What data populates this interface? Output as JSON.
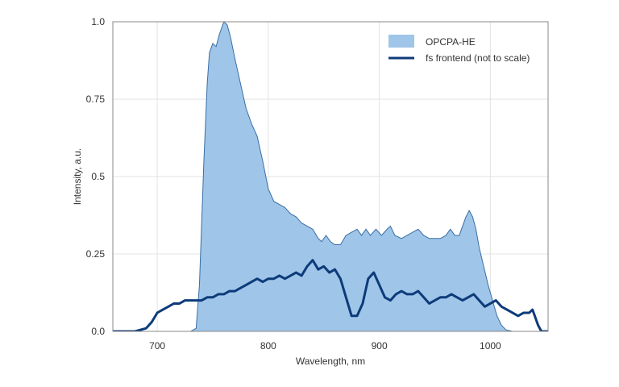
{
  "chart_data": {
    "type": "area",
    "title": "",
    "xlabel": "Wavelength, nm",
    "ylabel": "Intensity, a.u.",
    "xlim": [
      660,
      1052
    ],
    "ylim": [
      0,
      1.0
    ],
    "x_ticks": [
      700,
      800,
      900,
      1000
    ],
    "x_tick_labels": [
      "700",
      "800",
      "900",
      "1000"
    ],
    "y_ticks": [
      0,
      0.25,
      0.5,
      0.75,
      1.0
    ],
    "y_tick_labels": [
      "0.0",
      "0.25",
      "0.5",
      "0.75",
      "1.0"
    ],
    "grid": true,
    "legend": "top-right",
    "series": [
      {
        "name": "OPCPA-HE",
        "style": "filled-area",
        "fill_color": "#9fc5e8",
        "line_color": "#3a6ea5",
        "points": [
          [
            730,
            0.0
          ],
          [
            735,
            0.01
          ],
          [
            738,
            0.15
          ],
          [
            742,
            0.55
          ],
          [
            745,
            0.8
          ],
          [
            747,
            0.9
          ],
          [
            750,
            0.93
          ],
          [
            753,
            0.92
          ],
          [
            756,
            0.96
          ],
          [
            760,
            1.0
          ],
          [
            763,
            0.99
          ],
          [
            766,
            0.95
          ],
          [
            770,
            0.88
          ],
          [
            775,
            0.8
          ],
          [
            780,
            0.72
          ],
          [
            785,
            0.67
          ],
          [
            790,
            0.63
          ],
          [
            795,
            0.55
          ],
          [
            800,
            0.46
          ],
          [
            805,
            0.42
          ],
          [
            810,
            0.41
          ],
          [
            815,
            0.4
          ],
          [
            820,
            0.38
          ],
          [
            825,
            0.37
          ],
          [
            830,
            0.35
          ],
          [
            835,
            0.34
          ],
          [
            840,
            0.33
          ],
          [
            845,
            0.3
          ],
          [
            848,
            0.29
          ],
          [
            852,
            0.31
          ],
          [
            856,
            0.29
          ],
          [
            860,
            0.28
          ],
          [
            865,
            0.28
          ],
          [
            870,
            0.31
          ],
          [
            875,
            0.32
          ],
          [
            880,
            0.33
          ],
          [
            884,
            0.31
          ],
          [
            888,
            0.33
          ],
          [
            892,
            0.31
          ],
          [
            897,
            0.33
          ],
          [
            902,
            0.31
          ],
          [
            907,
            0.33
          ],
          [
            910,
            0.34
          ],
          [
            914,
            0.31
          ],
          [
            920,
            0.3
          ],
          [
            925,
            0.31
          ],
          [
            930,
            0.32
          ],
          [
            935,
            0.33
          ],
          [
            940,
            0.31
          ],
          [
            945,
            0.3
          ],
          [
            950,
            0.3
          ],
          [
            955,
            0.3
          ],
          [
            960,
            0.31
          ],
          [
            964,
            0.33
          ],
          [
            968,
            0.31
          ],
          [
            972,
            0.31
          ],
          [
            975,
            0.34
          ],
          [
            978,
            0.37
          ],
          [
            981,
            0.39
          ],
          [
            984,
            0.37
          ],
          [
            987,
            0.33
          ],
          [
            990,
            0.27
          ],
          [
            994,
            0.21
          ],
          [
            998,
            0.15
          ],
          [
            1002,
            0.1
          ],
          [
            1006,
            0.05
          ],
          [
            1010,
            0.02
          ],
          [
            1014,
            0.005
          ],
          [
            1020,
            0.0
          ]
        ]
      },
      {
        "name": "fs frontend (not to scale)",
        "style": "line",
        "line_color": "#0d3b7a",
        "points": [
          [
            660,
            0.0
          ],
          [
            680,
            0.0
          ],
          [
            690,
            0.01
          ],
          [
            695,
            0.03
          ],
          [
            700,
            0.06
          ],
          [
            705,
            0.07
          ],
          [
            710,
            0.08
          ],
          [
            715,
            0.09
          ],
          [
            720,
            0.09
          ],
          [
            725,
            0.1
          ],
          [
            730,
            0.1
          ],
          [
            735,
            0.1
          ],
          [
            740,
            0.1
          ],
          [
            745,
            0.11
          ],
          [
            750,
            0.11
          ],
          [
            755,
            0.12
          ],
          [
            760,
            0.12
          ],
          [
            765,
            0.13
          ],
          [
            770,
            0.13
          ],
          [
            775,
            0.14
          ],
          [
            780,
            0.15
          ],
          [
            785,
            0.16
          ],
          [
            790,
            0.17
          ],
          [
            795,
            0.16
          ],
          [
            800,
            0.17
          ],
          [
            805,
            0.17
          ],
          [
            810,
            0.18
          ],
          [
            815,
            0.17
          ],
          [
            820,
            0.18
          ],
          [
            825,
            0.19
          ],
          [
            830,
            0.18
          ],
          [
            835,
            0.21
          ],
          [
            840,
            0.23
          ],
          [
            845,
            0.2
          ],
          [
            850,
            0.21
          ],
          [
            855,
            0.19
          ],
          [
            860,
            0.2
          ],
          [
            865,
            0.17
          ],
          [
            870,
            0.11
          ],
          [
            875,
            0.05
          ],
          [
            880,
            0.05
          ],
          [
            885,
            0.09
          ],
          [
            890,
            0.17
          ],
          [
            895,
            0.19
          ],
          [
            900,
            0.15
          ],
          [
            905,
            0.11
          ],
          [
            910,
            0.1
          ],
          [
            915,
            0.12
          ],
          [
            920,
            0.13
          ],
          [
            925,
            0.12
          ],
          [
            930,
            0.12
          ],
          [
            935,
            0.13
          ],
          [
            940,
            0.11
          ],
          [
            945,
            0.09
          ],
          [
            950,
            0.1
          ],
          [
            955,
            0.11
          ],
          [
            960,
            0.11
          ],
          [
            965,
            0.12
          ],
          [
            970,
            0.11
          ],
          [
            975,
            0.1
          ],
          [
            980,
            0.11
          ],
          [
            985,
            0.12
          ],
          [
            990,
            0.1
          ],
          [
            995,
            0.08
          ],
          [
            1000,
            0.09
          ],
          [
            1005,
            0.1
          ],
          [
            1010,
            0.08
          ],
          [
            1015,
            0.07
          ],
          [
            1020,
            0.06
          ],
          [
            1025,
            0.05
          ],
          [
            1030,
            0.06
          ],
          [
            1035,
            0.06
          ],
          [
            1038,
            0.07
          ],
          [
            1040,
            0.05
          ],
          [
            1043,
            0.02
          ],
          [
            1046,
            0.0
          ],
          [
            1052,
            0.0
          ]
        ]
      }
    ]
  }
}
